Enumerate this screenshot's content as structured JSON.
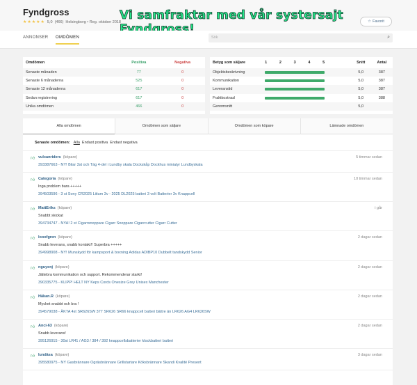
{
  "header": {
    "title": "Fyndgross",
    "stars": 5,
    "rating": "5,0",
    "count": "(466)",
    "location_reg": "Helsingborg • Reg. oktober 2018",
    "banner": "Vi samfraktar med vår systersajt Fyndgross!",
    "favorite_label": "Favorit"
  },
  "nav": {
    "tabs": [
      {
        "label": "ANNONSER"
      },
      {
        "label": "OMDÖMEN",
        "active": true
      }
    ],
    "search_placeholder": "Sök"
  },
  "summary": {
    "headers": {
      "label": "Omdömen",
      "positive": "Positiva",
      "negative": "Negativa"
    },
    "rows": [
      {
        "label": "Senaste månaden",
        "positive": "77",
        "negative": "0"
      },
      {
        "label": "Senaste 6 månaderna",
        "positive": "525",
        "negative": "0"
      },
      {
        "label": "Senaste 12 månaderna",
        "positive": "617",
        "negative": "0"
      },
      {
        "label": "Sedan registrering",
        "positive": "617",
        "negative": "0"
      },
      {
        "label": "Unika omdömen",
        "positive": "466",
        "negative": "0"
      }
    ]
  },
  "seller_rating": {
    "headers": {
      "label": "Betyg som säljare",
      "scale": [
        "1",
        "2",
        "3",
        "4",
        "5"
      ],
      "avg": "Snitt",
      "count": "Antal"
    },
    "rows": [
      {
        "label": "Objektsbeskrivning",
        "avg": "5,0",
        "count": "387",
        "score": 5
      },
      {
        "label": "Kommunikation",
        "avg": "5,0",
        "count": "387",
        "score": 5
      },
      {
        "label": "Leveranstid",
        "avg": "5,0",
        "count": "387",
        "score": 5
      },
      {
        "label": "Fraktkostnad",
        "avg": "5,0",
        "count": "388",
        "score": 5
      }
    ],
    "total": {
      "label": "Genomsnitt",
      "avg": "5,0"
    }
  },
  "review_tabs": [
    {
      "label": "Alla omdömen",
      "active": true
    },
    {
      "label": "Omdömen som säljare"
    },
    {
      "label": "Omdömen som köpare"
    },
    {
      "label": "Lämnade omdömen"
    }
  ],
  "filter": {
    "label": "Senaste omdömen:",
    "options": [
      "Alla",
      "Endast positiva",
      "Endast negativa"
    ]
  },
  "reviews": [
    {
      "user": "vulcanriders",
      "role": "(köpare)",
      "time": "5 timmar sedan",
      "text": "",
      "item": "393387663 - NY! Bilar 3st och Täg 4-del i Lundby skala Dockskåp Dockhus miniatyr Lundbyskala"
    },
    {
      "user": "Categoria",
      "role": "(köpare)",
      "time": "10 timmar sedan",
      "text": "Inga problem bara +++++",
      "item": "394503596 - 3 st Sony CR2025 Litium 3v - 2025 DL2025 batteri 3 volt Batterier 3v Knappcell"
    },
    {
      "user": "MattEriks",
      "role": "(köpare)",
      "time": "i går",
      "text": "Snabbt skickat",
      "item": "394734747 - NYA! 2 st Cigarrsnoppare Cigarr Snoppare Cigarrcutter Cigarr Cutter"
    },
    {
      "user": "looofgren",
      "role": "(köpare)",
      "time": "2 dagar sedan",
      "text": "Snabb leverans, snabb kontakt!! Superbra +++++",
      "item": "394998908 - NY! Munskydd för kampsport & boxning Adidas ADIBP10 Dubbelt tandskydd Senior"
    },
    {
      "user": "nguyenj",
      "role": "(köpare)",
      "time": "2 dagar sedan",
      "text": "Jättebra kommunikation och support. Rekommenderar starkt!",
      "item": "390335775 - KLIPP! HELT NY Keps Cords Onesize Grey Unisex Manchester"
    },
    {
      "user": "Håkan.R",
      "role": "(köpare)",
      "time": "2 dagar sedan",
      "text": "Mycket snabbt och bra !",
      "item": "394579038 - ÄKTA 4st SR626SW 377 SR626 SR66 knappcell batteri bättre än LR626 AG4 LR626SW"
    },
    {
      "user": "Anci-63",
      "role": "(köpare)",
      "time": "2 dagar sedan",
      "text": "Snabb leverans!",
      "item": "395126915 - 30st LR41 / AG3 / 384 / 392 knappcellsbatterier klockbatteri batteri"
    },
    {
      "user": "lundäsa",
      "role": "(köpare)",
      "time": "3 dagar sedan",
      "text": "",
      "item": "395580975 - NY Gasbrännare Ogräsbrännare Grillstartare Köksbrännare Skandi Kvalité Present"
    }
  ]
}
